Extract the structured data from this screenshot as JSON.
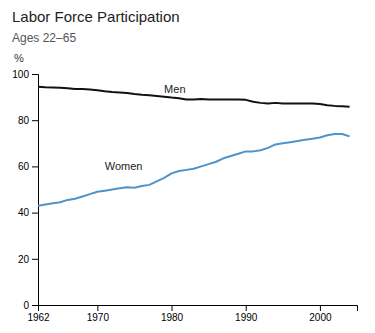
{
  "chart_data": {
    "type": "line",
    "title": "Labor Force Participation",
    "subtitle": "Ages 22–65",
    "y_label": "%",
    "x": [
      1962,
      1963,
      1964,
      1965,
      1966,
      1967,
      1968,
      1969,
      1970,
      1971,
      1972,
      1973,
      1974,
      1975,
      1976,
      1977,
      1978,
      1979,
      1980,
      1981,
      1982,
      1983,
      1984,
      1985,
      1986,
      1987,
      1988,
      1989,
      1990,
      1991,
      1992,
      1993,
      1994,
      1995,
      1996,
      1997,
      1998,
      1999,
      2000,
      2001,
      2002,
      2003,
      2004
    ],
    "series": [
      {
        "name": "Men",
        "color": "#111111",
        "label_x": 1979,
        "label_y": 91.0,
        "values": [
          94.5,
          94.3,
          94.2,
          94.0,
          93.8,
          93.5,
          93.5,
          93.3,
          93.0,
          92.5,
          92.2,
          92.0,
          91.8,
          91.3,
          91.0,
          90.8,
          90.5,
          90.2,
          89.8,
          89.5,
          89.0,
          89.0,
          89.2,
          89.0,
          89.0,
          89.0,
          89.0,
          89.0,
          88.8,
          88.0,
          87.5,
          87.2,
          87.5,
          87.2,
          87.2,
          87.2,
          87.2,
          87.2,
          87.0,
          86.5,
          86.2,
          86.0,
          85.8
        ]
      },
      {
        "name": "Women",
        "color": "#4d94cc",
        "label_x": 1971,
        "label_y": 57.5,
        "values": [
          43.0,
          43.5,
          44.0,
          44.5,
          45.5,
          46.0,
          47.0,
          48.0,
          49.0,
          49.5,
          50.0,
          50.5,
          51.0,
          50.8,
          51.5,
          52.0,
          53.5,
          55.0,
          57.0,
          58.0,
          58.5,
          59.0,
          60.0,
          61.0,
          62.0,
          63.5,
          64.5,
          65.5,
          66.5,
          66.5,
          67.0,
          68.0,
          69.5,
          70.0,
          70.5,
          71.0,
          71.5,
          72.0,
          72.5,
          73.5,
          74.0,
          74.0,
          73.0
        ]
      }
    ],
    "xlim": [
      1962,
      2005
    ],
    "ylim": [
      0,
      100
    ],
    "xticks": [
      1962,
      1970,
      1980,
      1990,
      2000
    ],
    "yticks": [
      0,
      20,
      40,
      60,
      80,
      100
    ],
    "grid": false
  }
}
